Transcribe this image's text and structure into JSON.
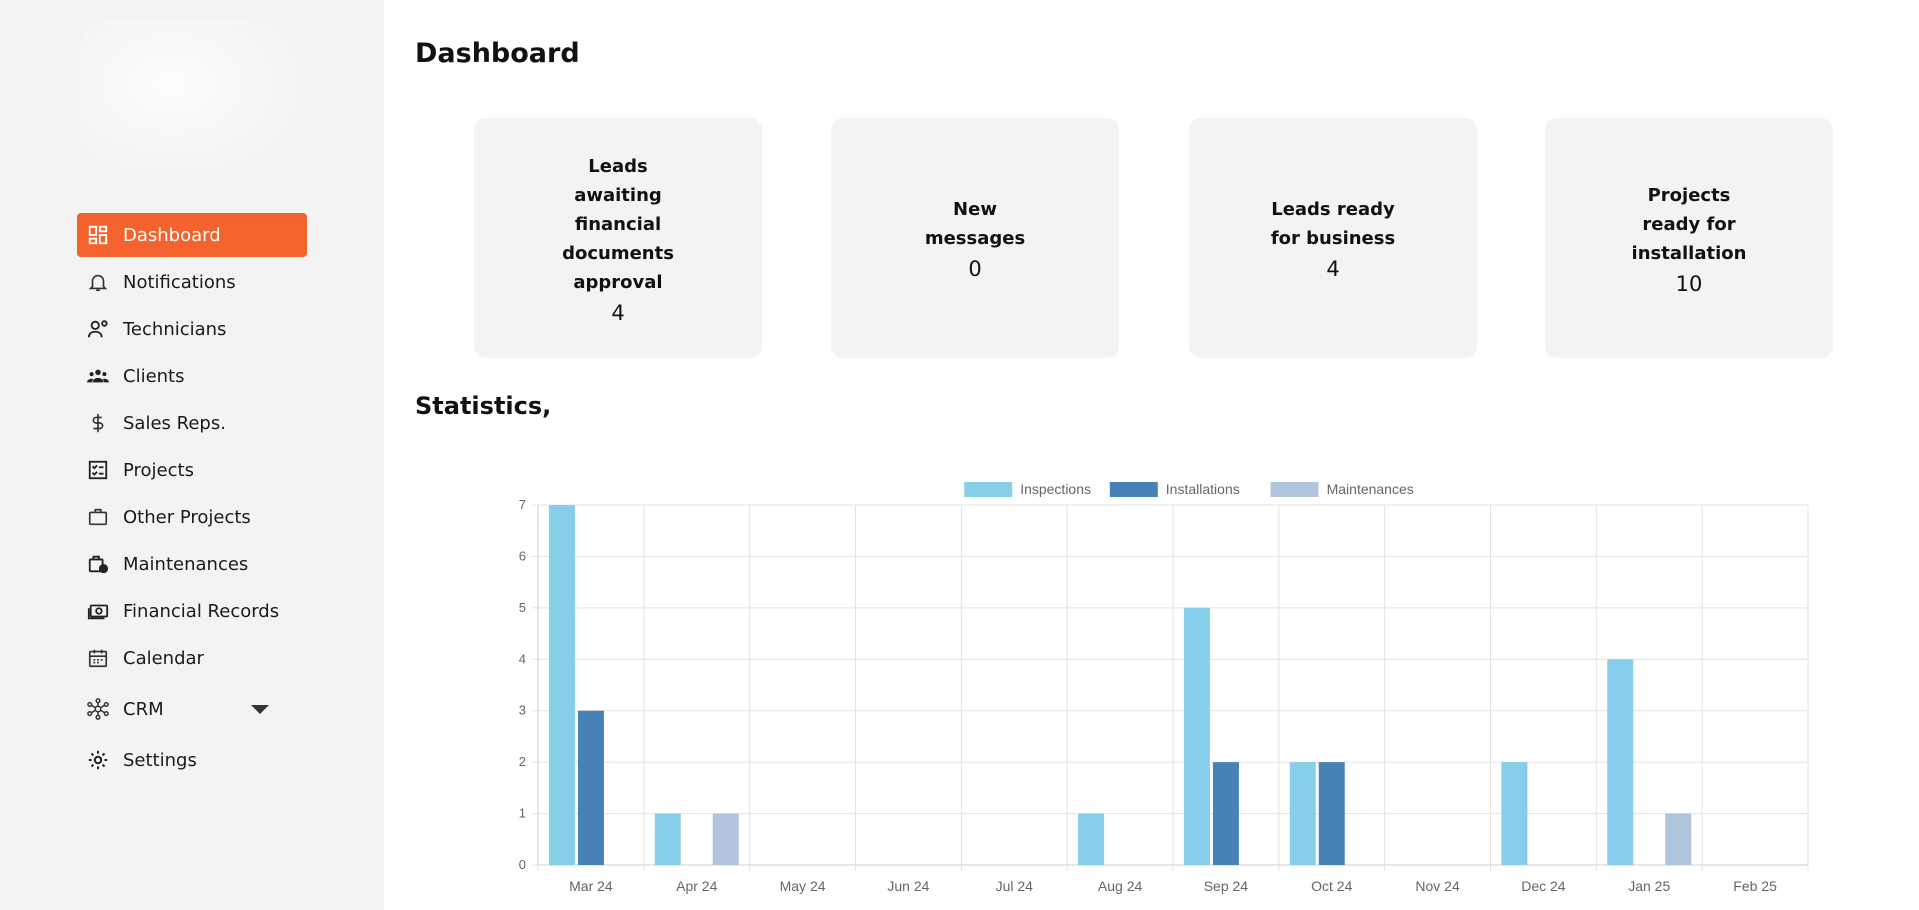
{
  "sidebar": {
    "items": [
      {
        "label": "Dashboard",
        "icon": "dashboard-icon",
        "active": true
      },
      {
        "label": "Notifications",
        "icon": "bell-icon"
      },
      {
        "label": "Technicians",
        "icon": "technician-icon"
      },
      {
        "label": "Clients",
        "icon": "clients-icon"
      },
      {
        "label": "Sales Reps.",
        "icon": "dollar-icon"
      },
      {
        "label": "Projects",
        "icon": "checklist-icon"
      },
      {
        "label": "Other Projects",
        "icon": "briefcase-icon"
      },
      {
        "label": "Maintenances",
        "icon": "maintenance-icon"
      },
      {
        "label": "Financial Records",
        "icon": "money-icon"
      },
      {
        "label": "Calendar",
        "icon": "calendar-icon"
      },
      {
        "label": "CRM",
        "icon": "network-icon"
      },
      {
        "label": "Settings",
        "icon": "gear-icon"
      }
    ]
  },
  "main": {
    "title": "Dashboard",
    "cards": [
      {
        "label": "Leads awaiting financial documents approval",
        "value": "4"
      },
      {
        "label": "New messages",
        "value": "0"
      },
      {
        "label": "Leads ready for business",
        "value": "4"
      },
      {
        "label": "Projects ready for installation",
        "value": "10"
      }
    ],
    "statistics_title": "Statistics,"
  },
  "colors": {
    "accent": "#f4632d",
    "inspections": "#87ceeb",
    "installations": "#4682b4",
    "maintenances": "#b0c4de"
  },
  "chart_data": {
    "type": "bar",
    "title": "",
    "xlabel": "",
    "ylabel": "",
    "categories": [
      "Mar 24",
      "Apr 24",
      "May 24",
      "Jun 24",
      "Jul 24",
      "Aug 24",
      "Sep 24",
      "Oct 24",
      "Nov 24",
      "Dec 24",
      "Jan 25",
      "Feb 25"
    ],
    "series": [
      {
        "name": "Inspections",
        "color": "#87ceeb",
        "values": [
          7,
          1,
          0,
          0,
          0,
          1,
          5,
          2,
          0,
          2,
          4,
          0
        ]
      },
      {
        "name": "Installations",
        "color": "#4682b4",
        "values": [
          3,
          0,
          0,
          0,
          0,
          0,
          2,
          2,
          0,
          0,
          0,
          0
        ]
      },
      {
        "name": "Maintenances",
        "color": "#b0c4de",
        "values": [
          0,
          1,
          0,
          0,
          0,
          0,
          0,
          0,
          0,
          0,
          1,
          0
        ]
      }
    ],
    "ylim": [
      0,
      7
    ],
    "yticks": [
      "0",
      "1",
      "2",
      "3",
      "4",
      "5",
      "6",
      "7"
    ],
    "grid": true,
    "legend": "top"
  }
}
